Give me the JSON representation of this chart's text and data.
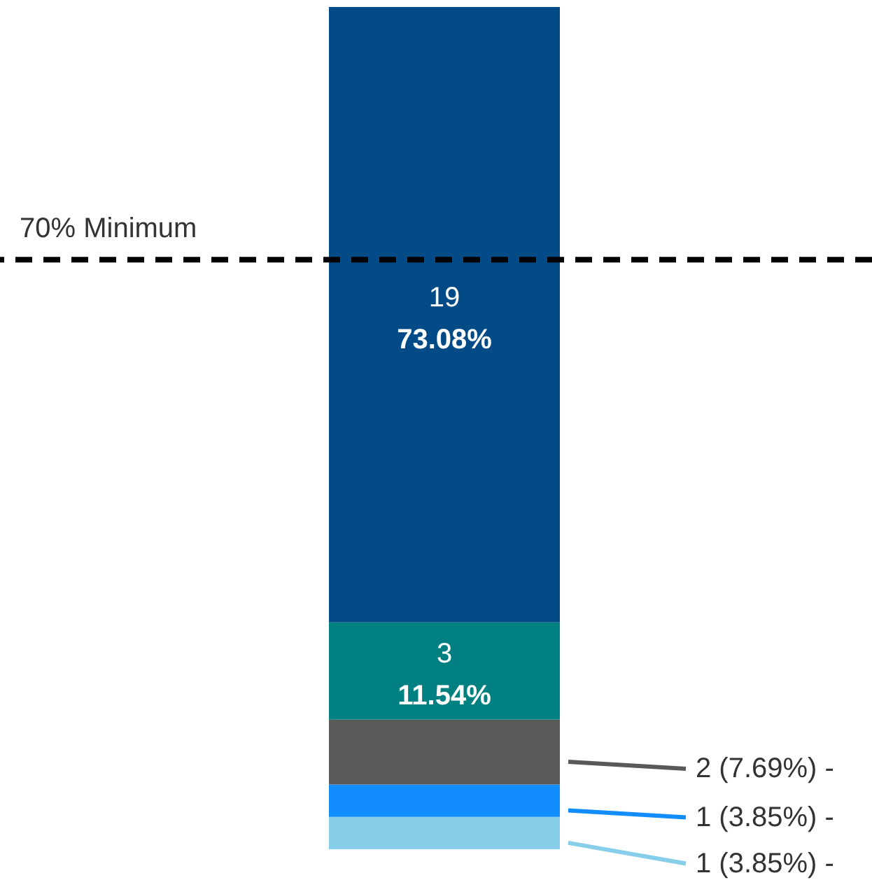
{
  "chart_data": {
    "type": "bar",
    "stacked": true,
    "categories": [
      null
    ],
    "series": [
      {
        "color": "#87ceeb",
        "values": [
          1
        ],
        "value_labels": [
          "1 (3.85%) -"
        ]
      },
      {
        "color": "#118dff",
        "values": [
          1
        ],
        "value_labels": [
          "1 (3.85%) -"
        ]
      },
      {
        "color": "#595959",
        "values": [
          2
        ],
        "value_labels": [
          "2 (7.69%) -"
        ]
      },
      {
        "color": "#008080",
        "values": [
          3
        ],
        "value_labels": [
          "3\n11.54%"
        ]
      },
      {
        "color": "#034b87",
        "values": [
          19
        ],
        "value_labels": [
          "19\n73.08%"
        ]
      }
    ],
    "ref_lines": [
      {
        "axis": "y",
        "value": 18.2,
        "label": "70% Minimum",
        "color": "#000000",
        "line_style": "dashed"
      }
    ]
  }
}
